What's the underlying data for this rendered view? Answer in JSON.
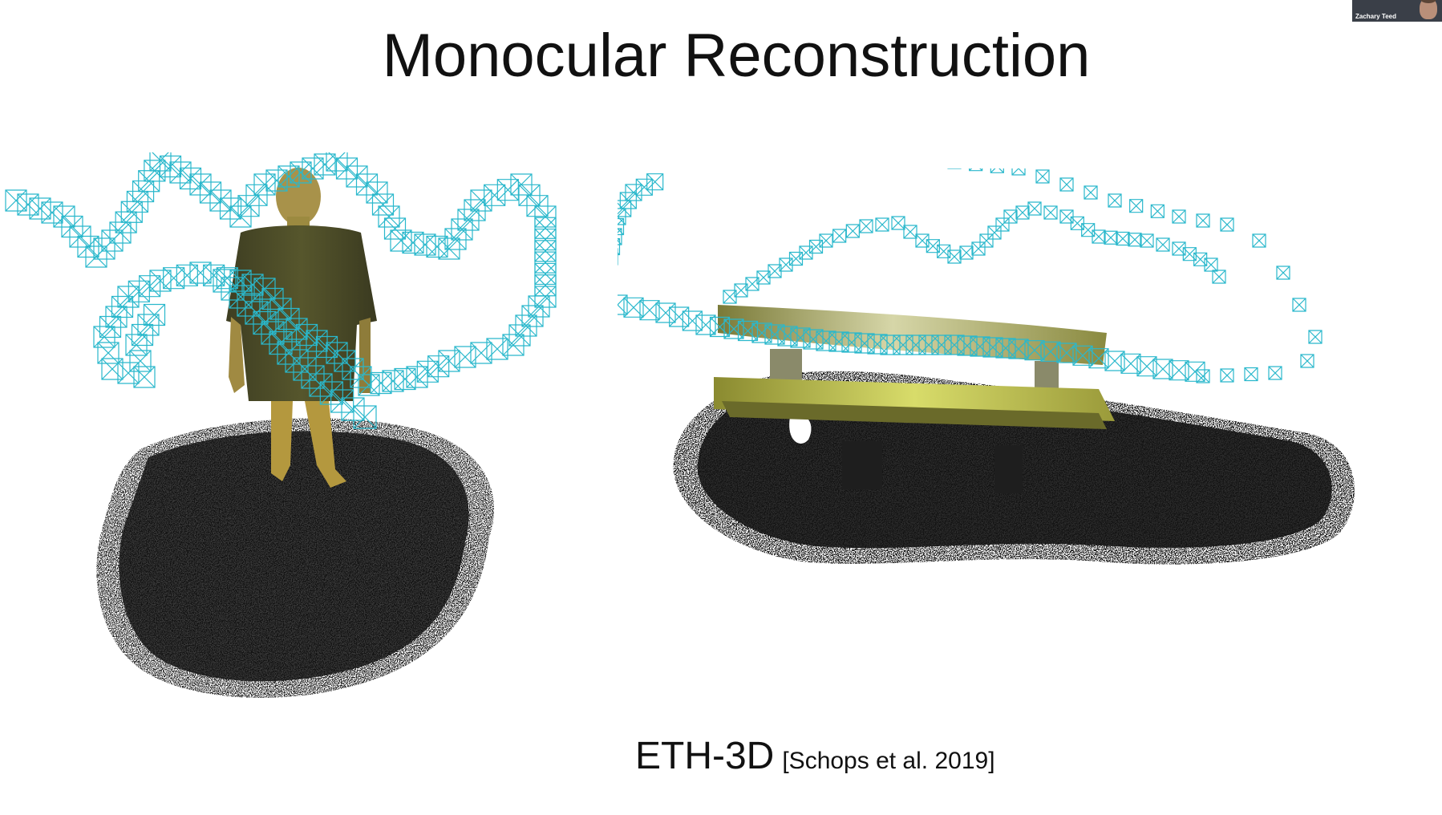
{
  "slide": {
    "title": "Monocular Reconstruction",
    "caption_main": "ETH-3D",
    "caption_citation": "[Schops et al. 2019]"
  },
  "video_tile": {
    "participant_name": "Zachary Teed"
  },
  "colors": {
    "background": "#ffffff",
    "text": "#111111",
    "camera_frustum": "#2ab8cc",
    "point_cloud_dark": "#141414",
    "figure_skin": "#b8a04a",
    "figure_shirt": "#4a4a2a",
    "bench_top": "#c8c850"
  }
}
